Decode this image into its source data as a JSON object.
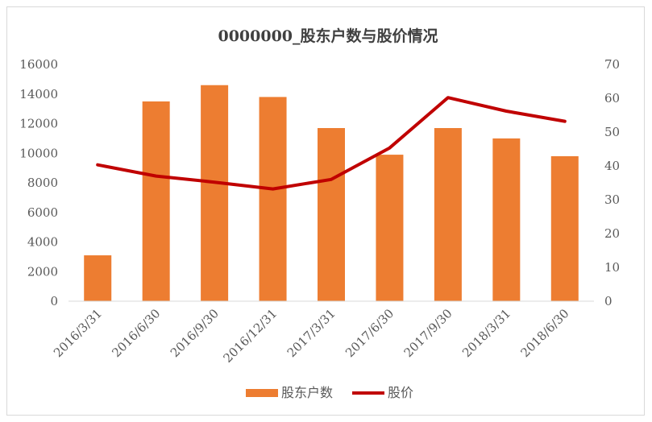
{
  "chart_data": {
    "type": "bar",
    "title": "0000000_股东户数与股价情况",
    "categories": [
      "2016/3/31",
      "2016/6/30",
      "2016/9/30",
      "2016/12/31",
      "2017/3/31",
      "2017/6/30",
      "2017/9/30",
      "2018/3/31",
      "2018/6/30"
    ],
    "series": [
      {
        "name": "股东户数",
        "type": "bar",
        "axis": "left",
        "color": "#ED7D31",
        "values": [
          3100,
          13500,
          14600,
          13800,
          11700,
          9900,
          11700,
          11000,
          9800
        ]
      },
      {
        "name": "股价",
        "type": "line",
        "axis": "right",
        "color": "#C00000",
        "values": [
          40.3,
          37,
          35.2,
          33.2,
          36,
          45.3,
          60.2,
          56.2,
          53.2
        ]
      }
    ],
    "y_left": {
      "range": [
        0,
        16000
      ],
      "ticks": [
        "0",
        "2000",
        "4000",
        "6000",
        "8000",
        "10000",
        "12000",
        "14000",
        "16000"
      ]
    },
    "y_right": {
      "range": [
        0,
        70
      ],
      "ticks": [
        "0",
        "10",
        "20",
        "30",
        "40",
        "50",
        "60",
        "70"
      ]
    },
    "grid": false,
    "legend": "bottom"
  }
}
